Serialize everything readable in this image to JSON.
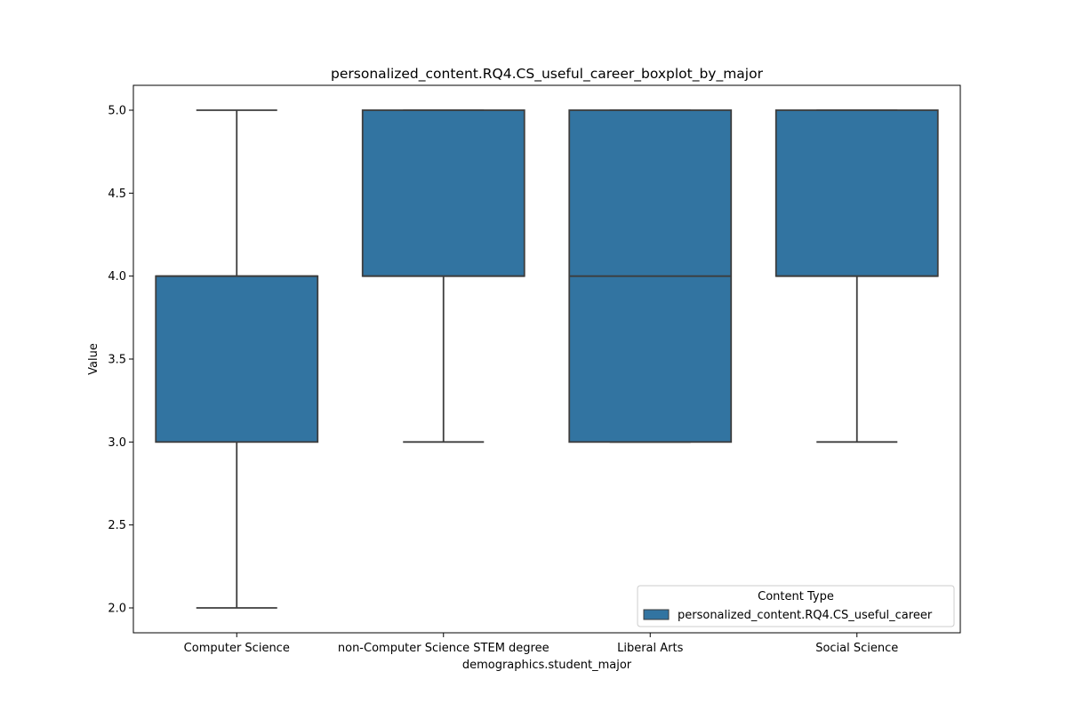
{
  "chart_data": {
    "type": "boxplot",
    "title": "personalized_content.RQ4.CS_useful_career_boxplot_by_major",
    "xlabel": "demographics.student_major",
    "ylabel": "Value",
    "categories": [
      "Computer Science",
      "non-Computer Science STEM degree",
      "Liberal Arts",
      "Social Science"
    ],
    "ylim": [
      1.85,
      5.15
    ],
    "yticks": [
      "2.0",
      "2.5",
      "3.0",
      "3.5",
      "4.0",
      "4.5",
      "5.0"
    ],
    "grid": false,
    "legend": {
      "title": "Content Type",
      "entries": [
        "personalized_content.RQ4.CS_useful_career"
      ],
      "placement": "lower-right"
    },
    "series": [
      {
        "name": "personalized_content.RQ4.CS_useful_career",
        "color": "#3274a1",
        "boxes": [
          {
            "category": "Computer Science",
            "whisker_low": 2.0,
            "q1": 3.0,
            "median": 4.0,
            "q3": 4.0,
            "whisker_high": 5.0
          },
          {
            "category": "non-Computer Science STEM degree",
            "whisker_low": 3.0,
            "q1": 4.0,
            "median": 4.0,
            "q3": 5.0,
            "whisker_high": 5.0
          },
          {
            "category": "Liberal Arts",
            "whisker_low": 3.0,
            "q1": 3.0,
            "median": 4.0,
            "q3": 5.0,
            "whisker_high": 5.0
          },
          {
            "category": "Social Science",
            "whisker_low": 3.0,
            "q1": 4.0,
            "median": 4.0,
            "q3": 5.0,
            "whisker_high": 5.0
          }
        ]
      }
    ]
  }
}
